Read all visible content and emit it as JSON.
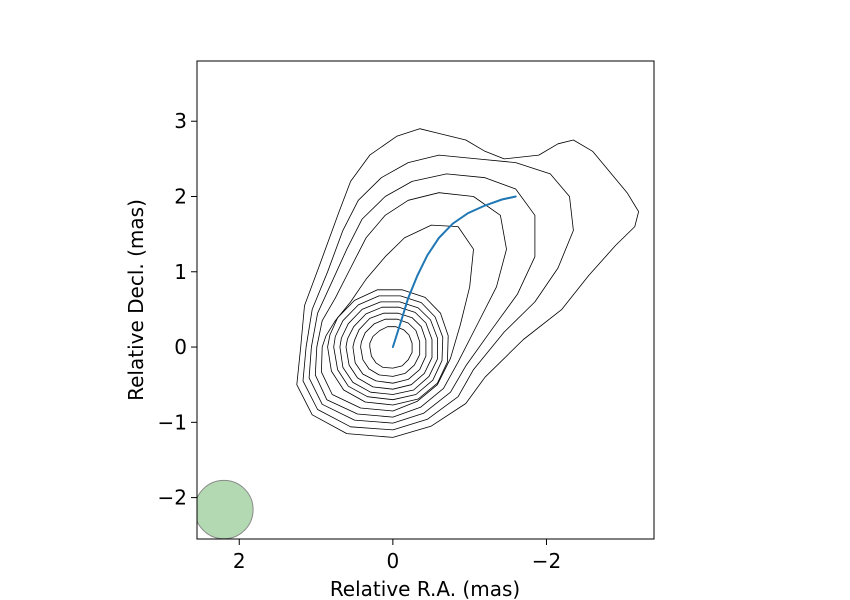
{
  "chart_data": {
    "type": "contour",
    "xlabel": "Relative R.A. (mas)",
    "ylabel": "Relative Decl. (mas)",
    "xlim": [
      2.55,
      -3.4
    ],
    "ylim": [
      -2.55,
      3.8
    ],
    "x_inverted": true,
    "grid": false,
    "x_ticks": [
      {
        "value": 2,
        "label": "2"
      },
      {
        "value": 0,
        "label": "0"
      },
      {
        "value": -2,
        "label": "−2"
      }
    ],
    "y_ticks": [
      {
        "value": -2,
        "label": "−2"
      },
      {
        "value": -1,
        "label": "−1"
      },
      {
        "value": 0,
        "label": "0"
      },
      {
        "value": 1,
        "label": "1"
      },
      {
        "value": 2,
        "label": "2"
      },
      {
        "value": 3,
        "label": "3"
      }
    ],
    "contour_color": "#000000",
    "contours": [
      [
        [
          1.2,
          0
        ],
        [
          1.25,
          -0.5
        ],
        [
          1.05,
          -0.9
        ],
        [
          0.6,
          -1.15
        ],
        [
          0,
          -1.2
        ],
        [
          -0.5,
          -1.05
        ],
        [
          -0.95,
          -0.75
        ],
        [
          -1.2,
          -0.4
        ],
        [
          -1.7,
          0.1
        ],
        [
          -2.2,
          0.5
        ],
        [
          -2.55,
          0.95
        ],
        [
          -2.9,
          1.35
        ],
        [
          -3.15,
          1.6
        ],
        [
          -3.2,
          1.8
        ],
        [
          -3.05,
          2.05
        ],
        [
          -2.6,
          2.6
        ],
        [
          -2.35,
          2.75
        ],
        [
          -2.15,
          2.7
        ],
        [
          -1.9,
          2.55
        ],
        [
          -1.45,
          2.5
        ],
        [
          -1.2,
          2.6
        ],
        [
          -0.95,
          2.75
        ],
        [
          -0.55,
          2.85
        ],
        [
          -0.35,
          2.9
        ],
        [
          -0.05,
          2.8
        ],
        [
          0.3,
          2.55
        ],
        [
          0.55,
          2.2
        ],
        [
          0.7,
          1.8
        ],
        [
          0.95,
          1.1
        ],
        [
          1.15,
          0.55
        ],
        [
          1.2,
          0
        ]
      ],
      [
        [
          1.13,
          0
        ],
        [
          1.17,
          -0.45
        ],
        [
          0.98,
          -0.83
        ],
        [
          0.55,
          -1.06
        ],
        [
          0,
          -1.1
        ],
        [
          -0.45,
          -0.96
        ],
        [
          -0.85,
          -0.66
        ],
        [
          -1.05,
          -0.3
        ],
        [
          -1.45,
          0.2
        ],
        [
          -1.85,
          0.6
        ],
        [
          -2.15,
          1.05
        ],
        [
          -2.35,
          1.55
        ],
        [
          -2.3,
          2.0
        ],
        [
          -2.05,
          2.3
        ],
        [
          -1.6,
          2.45
        ],
        [
          -1.1,
          2.5
        ],
        [
          -0.6,
          2.55
        ],
        [
          -0.2,
          2.45
        ],
        [
          0.15,
          2.25
        ],
        [
          0.45,
          1.95
        ],
        [
          0.65,
          1.55
        ],
        [
          0.85,
          1.0
        ],
        [
          1.05,
          0.5
        ],
        [
          1.13,
          0
        ]
      ],
      [
        [
          1.06,
          0
        ],
        [
          1.09,
          -0.41
        ],
        [
          0.92,
          -0.76
        ],
        [
          0.5,
          -0.97
        ],
        [
          0,
          -1.01
        ],
        [
          -0.4,
          -0.88
        ],
        [
          -0.75,
          -0.6
        ],
        [
          -0.95,
          -0.25
        ],
        [
          -1.3,
          0.25
        ],
        [
          -1.62,
          0.7
        ],
        [
          -1.85,
          1.2
        ],
        [
          -1.85,
          1.75
        ],
        [
          -1.6,
          2.1
        ],
        [
          -1.2,
          2.25
        ],
        [
          -0.7,
          2.3
        ],
        [
          -0.25,
          2.2
        ],
        [
          0.1,
          2.0
        ],
        [
          0.4,
          1.7
        ],
        [
          0.6,
          1.3
        ],
        [
          0.8,
          0.85
        ],
        [
          0.98,
          0.45
        ],
        [
          1.06,
          0
        ]
      ],
      [
        [
          0.99,
          0
        ],
        [
          1.01,
          -0.37
        ],
        [
          0.86,
          -0.7
        ],
        [
          0.46,
          -0.89
        ],
        [
          0,
          -0.93
        ],
        [
          -0.36,
          -0.8
        ],
        [
          -0.66,
          -0.55
        ],
        [
          -0.85,
          -0.2
        ],
        [
          -1.1,
          0.3
        ],
        [
          -1.35,
          0.8
        ],
        [
          -1.48,
          1.3
        ],
        [
          -1.4,
          1.75
        ],
        [
          -1.05,
          2.0
        ],
        [
          -0.6,
          2.05
        ],
        [
          -0.2,
          1.95
        ],
        [
          0.1,
          1.75
        ],
        [
          0.35,
          1.45
        ],
        [
          0.55,
          1.05
        ],
        [
          0.75,
          0.65
        ],
        [
          0.92,
          0.35
        ],
        [
          0.99,
          0
        ]
      ],
      [
        [
          0.92,
          0
        ],
        [
          0.93,
          -0.33
        ],
        [
          0.79,
          -0.63
        ],
        [
          0.42,
          -0.81
        ],
        [
          0,
          -0.85
        ],
        [
          -0.32,
          -0.72
        ],
        [
          -0.58,
          -0.5
        ],
        [
          -0.75,
          -0.15
        ],
        [
          -0.88,
          0.3
        ],
        [
          -1.0,
          0.8
        ],
        [
          -1.05,
          1.3
        ],
        [
          -0.85,
          1.6
        ],
        [
          -0.5,
          1.62
        ],
        [
          -0.15,
          1.45
        ],
        [
          0.1,
          1.2
        ],
        [
          0.35,
          0.9
        ],
        [
          0.55,
          0.6
        ],
        [
          0.75,
          0.35
        ],
        [
          0.87,
          0.15
        ],
        [
          0.92,
          0
        ]
      ],
      [
        [
          0.85,
          0
        ],
        [
          0.8,
          -0.32
        ],
        [
          0.64,
          -0.57
        ],
        [
          0.36,
          -0.73
        ],
        [
          0,
          -0.77
        ],
        [
          -0.33,
          -0.69
        ],
        [
          -0.58,
          -0.48
        ],
        [
          -0.71,
          -0.2
        ],
        [
          -0.72,
          0.15
        ],
        [
          -0.62,
          0.45
        ],
        [
          -0.42,
          0.66
        ],
        [
          -0.12,
          0.76
        ],
        [
          0.2,
          0.76
        ],
        [
          0.5,
          0.62
        ],
        [
          0.72,
          0.39
        ],
        [
          0.82,
          0.16
        ],
        [
          0.85,
          0
        ]
      ],
      [
        [
          0.77,
          0
        ],
        [
          0.72,
          -0.3
        ],
        [
          0.58,
          -0.52
        ],
        [
          0.33,
          -0.66
        ],
        [
          0,
          -0.7
        ],
        [
          -0.3,
          -0.63
        ],
        [
          -0.52,
          -0.44
        ],
        [
          -0.64,
          -0.18
        ],
        [
          -0.65,
          0.13
        ],
        [
          -0.55,
          0.4
        ],
        [
          -0.37,
          0.59
        ],
        [
          -0.1,
          0.68
        ],
        [
          0.18,
          0.68
        ],
        [
          0.45,
          0.56
        ],
        [
          0.65,
          0.35
        ],
        [
          0.75,
          0.14
        ],
        [
          0.77,
          0
        ]
      ],
      [
        [
          0.69,
          0
        ],
        [
          0.65,
          -0.27
        ],
        [
          0.52,
          -0.47
        ],
        [
          0.29,
          -0.6
        ],
        [
          0,
          -0.63
        ],
        [
          -0.27,
          -0.57
        ],
        [
          -0.47,
          -0.39
        ],
        [
          -0.58,
          -0.16
        ],
        [
          -0.58,
          0.12
        ],
        [
          -0.49,
          0.36
        ],
        [
          -0.33,
          0.52
        ],
        [
          -0.09,
          0.6
        ],
        [
          0.16,
          0.6
        ],
        [
          0.4,
          0.5
        ],
        [
          0.58,
          0.31
        ],
        [
          0.67,
          0.12
        ],
        [
          0.69,
          0
        ]
      ],
      [
        [
          0.61,
          0
        ],
        [
          0.57,
          -0.24
        ],
        [
          0.46,
          -0.41
        ],
        [
          0.26,
          -0.53
        ],
        [
          0,
          -0.56
        ],
        [
          -0.24,
          -0.5
        ],
        [
          -0.41,
          -0.35
        ],
        [
          -0.51,
          -0.14
        ],
        [
          -0.51,
          0.1
        ],
        [
          -0.43,
          0.32
        ],
        [
          -0.29,
          0.46
        ],
        [
          -0.08,
          0.53
        ],
        [
          0.14,
          0.53
        ],
        [
          0.35,
          0.44
        ],
        [
          0.51,
          0.27
        ],
        [
          0.59,
          0.11
        ],
        [
          0.61,
          0
        ]
      ],
      [
        [
          0.52,
          0
        ],
        [
          0.49,
          -0.21
        ],
        [
          0.39,
          -0.36
        ],
        [
          0.22,
          -0.45
        ],
        [
          0,
          -0.48
        ],
        [
          -0.2,
          -0.43
        ],
        [
          -0.35,
          -0.3
        ],
        [
          -0.43,
          -0.12
        ],
        [
          -0.43,
          0.09
        ],
        [
          -0.37,
          0.27
        ],
        [
          -0.25,
          0.39
        ],
        [
          -0.07,
          0.45
        ],
        [
          0.12,
          0.45
        ],
        [
          0.3,
          0.38
        ],
        [
          0.44,
          0.23
        ],
        [
          0.5,
          0.09
        ],
        [
          0.52,
          0
        ]
      ],
      [
        [
          0.42,
          0
        ],
        [
          0.39,
          -0.17
        ],
        [
          0.31,
          -0.29
        ],
        [
          0.18,
          -0.37
        ],
        [
          0,
          -0.39
        ],
        [
          -0.16,
          -0.35
        ],
        [
          -0.28,
          -0.24
        ],
        [
          -0.35,
          -0.1
        ],
        [
          -0.35,
          0.07
        ],
        [
          -0.3,
          0.22
        ],
        [
          -0.2,
          0.32
        ],
        [
          -0.06,
          0.37
        ],
        [
          0.1,
          0.37
        ],
        [
          0.24,
          0.31
        ],
        [
          0.36,
          0.19
        ],
        [
          0.41,
          0.07
        ],
        [
          0.42,
          0
        ]
      ],
      [
        [
          0.3,
          0
        ],
        [
          0.28,
          -0.12
        ],
        [
          0.22,
          -0.21
        ],
        [
          0.13,
          -0.27
        ],
        [
          0,
          -0.28
        ],
        [
          -0.12,
          -0.25
        ],
        [
          -0.2,
          -0.17
        ],
        [
          -0.25,
          -0.07
        ],
        [
          -0.25,
          0.05
        ],
        [
          -0.21,
          0.16
        ],
        [
          -0.14,
          0.23
        ],
        [
          -0.04,
          0.27
        ],
        [
          0.07,
          0.27
        ],
        [
          0.17,
          0.22
        ],
        [
          0.26,
          0.14
        ],
        [
          0.3,
          0.05
        ],
        [
          0.3,
          0
        ]
      ]
    ],
    "jet_line": {
      "color": "#1f77b4",
      "points": [
        [
          0,
          0
        ],
        [
          -0.1,
          0.32
        ],
        [
          -0.2,
          0.65
        ],
        [
          -0.32,
          0.95
        ],
        [
          -0.45,
          1.22
        ],
        [
          -0.6,
          1.45
        ],
        [
          -0.78,
          1.64
        ],
        [
          -0.98,
          1.78
        ],
        [
          -1.2,
          1.88
        ],
        [
          -1.42,
          1.96
        ],
        [
          -1.6,
          2.0
        ]
      ]
    },
    "beam": {
      "center": [
        2.2,
        -2.16
      ],
      "radius": 0.38,
      "fill": "#b3d9b3",
      "stroke": "#8a8a8a"
    }
  }
}
